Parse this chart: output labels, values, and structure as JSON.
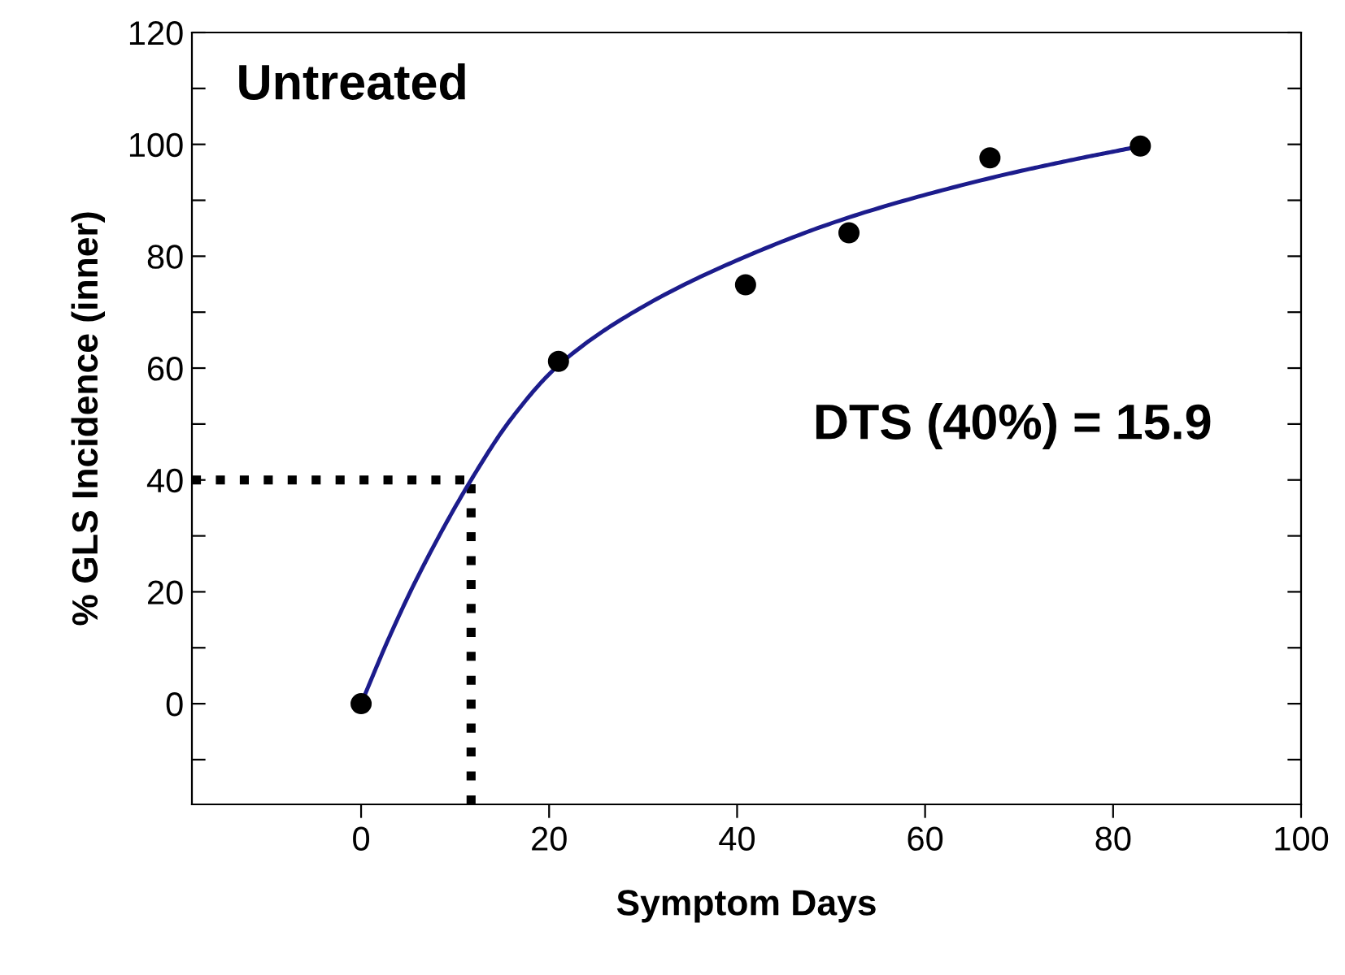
{
  "chart_data": {
    "type": "scatter",
    "xlabel": "Symptom Days",
    "ylabel": "% GLS Incidence (inner)",
    "series": [
      {
        "type": "line",
        "color": "#1c1c8c",
        "marker": "none",
        "line_style": "solid",
        "x": [
          0,
          3,
          6,
          11.7,
          16,
          21,
          30,
          41,
          52,
          67,
          75,
          83
        ],
        "values": [
          0,
          11.9,
          22.6,
          40,
          51,
          60.5,
          71,
          80,
          87,
          94,
          97,
          99.7
        ]
      },
      {
        "color": "#000000",
        "marker": "circle",
        "x": [
          0,
          21,
          40.9,
          51.9,
          66.9,
          82.9
        ],
        "values": [
          0,
          61.2,
          74.9,
          84.2,
          97.6,
          99.7
        ]
      }
    ],
    "ref_lines": [
      {
        "axis": "y",
        "value": 40,
        "color": "#000000",
        "line_style": "dotted"
      },
      {
        "axis": "x",
        "value": 11.7,
        "color": "#000000",
        "line_style": "dotted"
      }
    ],
    "annotations": [
      "Untreated",
      "DTS (40%) = 15.9"
    ],
    "xlim": [
      -18,
      100
    ],
    "ylim": [
      -18,
      120
    ],
    "xticks": [
      0,
      20,
      40,
      60,
      80,
      100
    ],
    "yticks": [
      {
        "value": -10,
        "label": null
      },
      0,
      {
        "value": 10,
        "label": null
      },
      20,
      {
        "value": 30,
        "label": null
      },
      40,
      {
        "value": 50,
        "label": null
      },
      60,
      {
        "value": 70,
        "label": null
      },
      80,
      {
        "value": 90,
        "label": null
      },
      100,
      {
        "value": 110,
        "label": null
      },
      120
    ],
    "grid": false,
    "legend": false
  }
}
